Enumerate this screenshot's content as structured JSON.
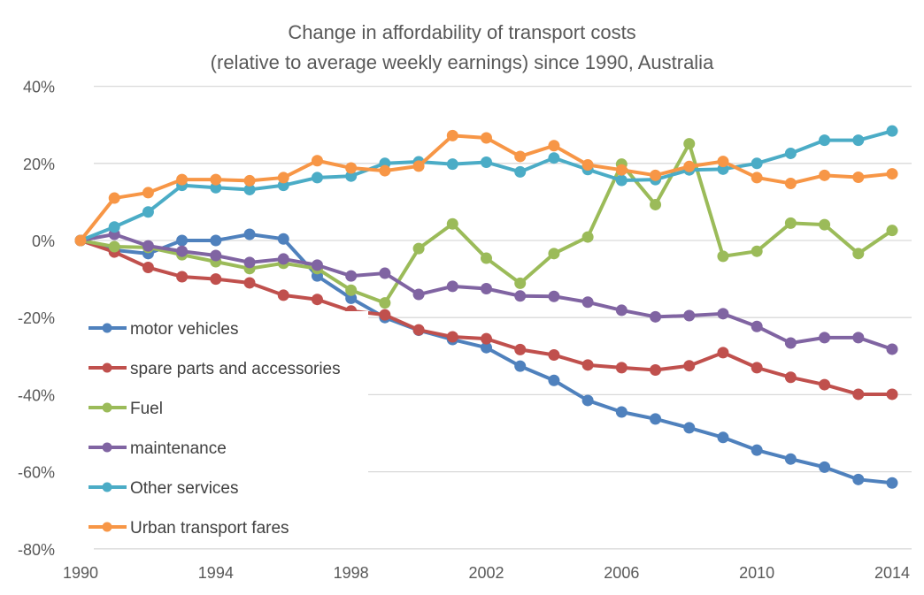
{
  "chart_data": {
    "type": "line",
    "title": "Change in affordability of transport costs",
    "subtitle": "(relative to average weekly earnings) since 1990, Australia",
    "xlabel": "",
    "ylabel": "",
    "x": [
      1990,
      1991,
      1992,
      1993,
      1994,
      1995,
      1996,
      1997,
      1998,
      1999,
      2000,
      2001,
      2002,
      2003,
      2004,
      2005,
      2006,
      2007,
      2008,
      2009,
      2010,
      2011,
      2012,
      2013,
      2014
    ],
    "x_ticks": [
      "1990",
      "1994",
      "1998",
      "2002",
      "2006",
      "2010",
      "2014"
    ],
    "x_tick_values": [
      1990,
      1994,
      1998,
      2002,
      2006,
      2010,
      2014
    ],
    "y_ticks": [
      "40%",
      "20%",
      "0%",
      "-20%",
      "-40%",
      "-60%",
      "-80%"
    ],
    "y_tick_values": [
      40,
      20,
      0,
      -20,
      -40,
      -60,
      -80
    ],
    "ylim": [
      -80,
      40
    ],
    "xlim": [
      1990,
      2014
    ],
    "y_unit": "%",
    "grid": "horizontal",
    "legend_position": "left-center",
    "series": [
      {
        "name": "motor vehicles",
        "color": "#4F81BD",
        "values": [
          0,
          -2.5,
          -3.4,
          0,
          0,
          1.6,
          0.4,
          -9.2,
          -15,
          -20,
          -23.3,
          -25.7,
          -27.8,
          -32.6,
          -36.3,
          -41.5,
          -44.5,
          -46.3,
          -48.6,
          -51.1,
          -54.4,
          -56.7,
          -58.8,
          -62,
          -62.9
        ]
      },
      {
        "name": "spare parts and accessories",
        "color": "#C0504D",
        "values": [
          0,
          -3,
          -7,
          -9.4,
          -10,
          -11,
          -14.2,
          -15.3,
          -18.3,
          -19.3,
          -23.2,
          -25,
          -25.5,
          -28.3,
          -29.7,
          -32.3,
          -33,
          -33.6,
          -32.5,
          -29.1,
          -33,
          -35.5,
          -37.4,
          -39.9,
          -39.9
        ]
      },
      {
        "name": "Fuel",
        "color": "#9BBB59",
        "values": [
          0,
          -1.6,
          -1.8,
          -3.7,
          -5.5,
          -7.3,
          -5.9,
          -7.3,
          -12.9,
          -16.2,
          -2.1,
          4.3,
          -4.6,
          -11.1,
          -3.4,
          0.9,
          19.8,
          9.3,
          25.1,
          -4.1,
          -2.8,
          4.5,
          4.1,
          -3.4,
          2.6
        ]
      },
      {
        "name": "maintenance",
        "color": "#8064A2",
        "values": [
          0,
          1.6,
          -1.4,
          -2.8,
          -3.9,
          -5.7,
          -4.8,
          -6.4,
          -9.2,
          -8.5,
          -14,
          -11.9,
          -12.5,
          -14.4,
          -14.5,
          -16,
          -18.1,
          -19.8,
          -19.5,
          -19,
          -22.3,
          -26.6,
          -25.2,
          -25.2,
          -28.2
        ]
      },
      {
        "name": "Other services",
        "color": "#4BACC6",
        "values": [
          0,
          3.5,
          7.4,
          14.3,
          13.7,
          13.2,
          14.3,
          16.3,
          16.7,
          20,
          20.4,
          19.8,
          20.3,
          17.8,
          21.4,
          18.4,
          15.6,
          15.8,
          18.3,
          18.5,
          20,
          22.6,
          26,
          26,
          28.4
        ]
      },
      {
        "name": "Urban transport fares",
        "color": "#F79646",
        "values": [
          0,
          11,
          12.4,
          15.8,
          15.8,
          15.5,
          16.3,
          20.7,
          18.8,
          18.1,
          19.3,
          27.2,
          26.6,
          21.8,
          24.6,
          19.6,
          18.3,
          16.9,
          19.2,
          20.5,
          16.3,
          14.8,
          16.9,
          16.4,
          17.3
        ]
      }
    ]
  }
}
